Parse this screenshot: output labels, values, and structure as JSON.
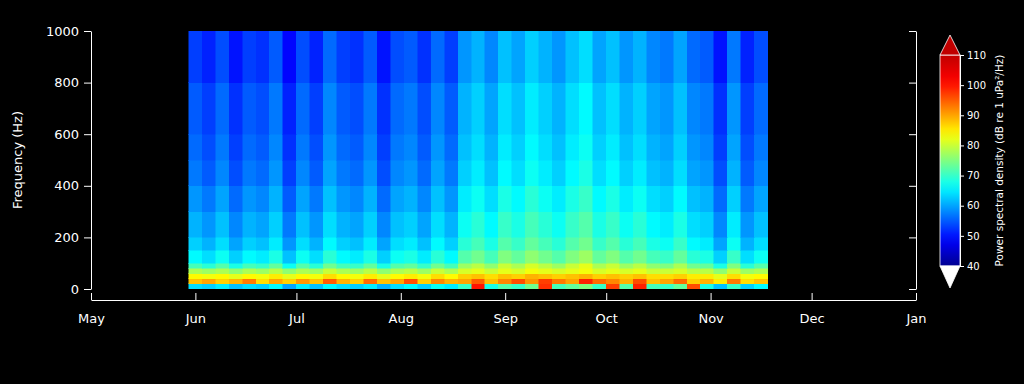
{
  "chart_data": {
    "type": "heatmap",
    "y_label": "Frequency (Hz)",
    "colorbar_label": "Power spectral density (dB re 1 uPa²/Hz)",
    "xlim": [
      0,
      245
    ],
    "xticks": [
      {
        "value": 0,
        "label": "May"
      },
      {
        "value": 31,
        "label": "Jun"
      },
      {
        "value": 61,
        "label": "Jul"
      },
      {
        "value": 92,
        "label": "Aug"
      },
      {
        "value": 123,
        "label": "Sep"
      },
      {
        "value": 153,
        "label": "Oct"
      },
      {
        "value": 184,
        "label": "Nov"
      },
      {
        "value": 214,
        "label": "Dec"
      },
      {
        "value": 245,
        "label": "Jan"
      }
    ],
    "ylim": [
      0,
      1000
    ],
    "yticks": [
      0,
      200,
      400,
      600,
      800,
      1000
    ],
    "zlim": [
      40,
      110
    ],
    "zticks": [
      40,
      50,
      60,
      70,
      80,
      90,
      100,
      110
    ],
    "x_bins": [
      29,
      33,
      37,
      41,
      45,
      49,
      53,
      57,
      61,
      65,
      69,
      73,
      77,
      81,
      85,
      89,
      93,
      97,
      101,
      105,
      109,
      113,
      117,
      121,
      125,
      129,
      133,
      137,
      141,
      145,
      149,
      153,
      157,
      161,
      165,
      169,
      173,
      177,
      181,
      185,
      189,
      193,
      197,
      201
    ],
    "y_bins": [
      0,
      20,
      40,
      60,
      80,
      100,
      150,
      200,
      300,
      400,
      500,
      600,
      800,
      1000
    ],
    "cells": [
      [
        64,
        63,
        65,
        62,
        64,
        63,
        66,
        60,
        65,
        62,
        66,
        64,
        63,
        65,
        61,
        64,
        66,
        63,
        67,
        65,
        70,
        100,
        68,
        72,
        70,
        74,
        98,
        71,
        73,
        75,
        70,
        97,
        72,
        99,
        71,
        70,
        73,
        96,
        68,
        62,
        70,
        63,
        66
      ],
      [
        88,
        90,
        87,
        89,
        93,
        86,
        90,
        87,
        91,
        88,
        95,
        89,
        87,
        94,
        88,
        90,
        96,
        87,
        92,
        89,
        90,
        95,
        88,
        92,
        96,
        91,
        97,
        93,
        90,
        99,
        94,
        92,
        89,
        96,
        88,
        90,
        94,
        87,
        89,
        85,
        93,
        86,
        88
      ],
      [
        84,
        83,
        84,
        82,
        84,
        83,
        85,
        82,
        84,
        83,
        86,
        84,
        83,
        85,
        82,
        84,
        85,
        83,
        86,
        84,
        87,
        88,
        86,
        88,
        87,
        89,
        88,
        87,
        88,
        89,
        87,
        88,
        87,
        88,
        86,
        86,
        87,
        85,
        85,
        82,
        86,
        83,
        84
      ],
      [
        78,
        77,
        78,
        76,
        78,
        77,
        79,
        76,
        78,
        77,
        80,
        78,
        77,
        79,
        76,
        78,
        79,
        77,
        80,
        78,
        81,
        82,
        80,
        82,
        81,
        83,
        82,
        81,
        82,
        83,
        81,
        82,
        81,
        82,
        80,
        80,
        81,
        79,
        79,
        76,
        80,
        77,
        78
      ],
      [
        71,
        69,
        72,
        68,
        71,
        70,
        73,
        67,
        72,
        69,
        74,
        71,
        70,
        73,
        68,
        72,
        73,
        70,
        74,
        71,
        77,
        79,
        76,
        80,
        78,
        81,
        79,
        77,
        80,
        82,
        78,
        80,
        77,
        79,
        76,
        75,
        78,
        74,
        73,
        68,
        75,
        69,
        72
      ],
      [
        66,
        64,
        67,
        63,
        66,
        65,
        68,
        62,
        67,
        64,
        69,
        66,
        65,
        68,
        63,
        67,
        68,
        65,
        69,
        66,
        72,
        74,
        71,
        75,
        73,
        76,
        74,
        72,
        75,
        77,
        73,
        75,
        72,
        74,
        71,
        70,
        73,
        69,
        68,
        63,
        70,
        64,
        67
      ],
      [
        63,
        61,
        64,
        60,
        63,
        62,
        65,
        59,
        64,
        61,
        66,
        63,
        62,
        65,
        60,
        64,
        65,
        62,
        66,
        63,
        69,
        71,
        68,
        72,
        70,
        73,
        71,
        69,
        72,
        74,
        70,
        72,
        69,
        71,
        68,
        67,
        70,
        66,
        65,
        60,
        67,
        61,
        64
      ],
      [
        61,
        59,
        62,
        58,
        61,
        60,
        63,
        57,
        62,
        59,
        64,
        61,
        60,
        63,
        58,
        62,
        63,
        60,
        64,
        61,
        67,
        69,
        66,
        70,
        68,
        71,
        69,
        67,
        70,
        72,
        68,
        70,
        67,
        69,
        66,
        65,
        68,
        64,
        63,
        58,
        65,
        59,
        62
      ],
      [
        59,
        57,
        60,
        56,
        59,
        58,
        61,
        55,
        60,
        57,
        62,
        59,
        58,
        61,
        56,
        60,
        61,
        58,
        62,
        59,
        65,
        67,
        64,
        68,
        66,
        69,
        67,
        65,
        68,
        70,
        66,
        68,
        65,
        67,
        64,
        63,
        66,
        62,
        61,
        56,
        63,
        57,
        60
      ],
      [
        57,
        55,
        58,
        54,
        57,
        56,
        59,
        53,
        58,
        55,
        60,
        57,
        56,
        59,
        54,
        58,
        59,
        56,
        60,
        57,
        63,
        65,
        62,
        66,
        64,
        67,
        65,
        63,
        66,
        68,
        64,
        66,
        63,
        65,
        62,
        61,
        64,
        60,
        59,
        54,
        61,
        55,
        58
      ],
      [
        56,
        54,
        57,
        53,
        56,
        55,
        58,
        52,
        57,
        54,
        59,
        56,
        55,
        58,
        53,
        57,
        58,
        55,
        59,
        56,
        62,
        64,
        61,
        65,
        63,
        66,
        64,
        62,
        65,
        67,
        63,
        65,
        62,
        64,
        61,
        60,
        63,
        59,
        58,
        53,
        60,
        54,
        57
      ],
      [
        55,
        53,
        56,
        52,
        55,
        54,
        57,
        51,
        56,
        53,
        58,
        55,
        54,
        57,
        52,
        56,
        57,
        54,
        58,
        55,
        61,
        63,
        60,
        64,
        62,
        65,
        63,
        61,
        64,
        66,
        62,
        64,
        61,
        63,
        60,
        59,
        62,
        58,
        57,
        52,
        59,
        53,
        56
      ],
      [
        53,
        51,
        54,
        50,
        53,
        52,
        55,
        49,
        54,
        51,
        56,
        53,
        52,
        55,
        50,
        54,
        55,
        52,
        56,
        53,
        59,
        61,
        58,
        62,
        60,
        63,
        61,
        59,
        62,
        64,
        60,
        62,
        59,
        61,
        58,
        57,
        60,
        56,
        55,
        50,
        57,
        51,
        54
      ]
    ]
  }
}
